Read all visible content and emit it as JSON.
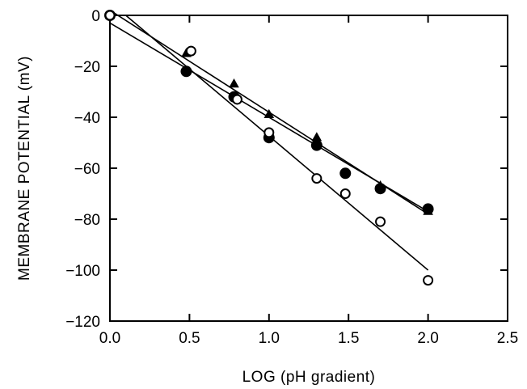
{
  "chart_data": {
    "type": "scatter",
    "title": "",
    "xlabel": "LOG (pH gradient)",
    "ylabel": "MEMBRANE POTENTIAL (mV)",
    "xlim": [
      0.0,
      2.5
    ],
    "ylim": [
      -120,
      0
    ],
    "x_ticks": [
      0.0,
      0.5,
      1.0,
      1.5,
      2.0,
      2.5
    ],
    "x_tick_labels": [
      "0.0",
      "0.5",
      "1.0",
      "1.5",
      "2.0",
      "2.5"
    ],
    "y_ticks": [
      0,
      -20,
      -40,
      -60,
      -80,
      -100,
      -120
    ],
    "y_tick_labels": [
      "0",
      "−20",
      "−40",
      "−60",
      "−80",
      "−100",
      "−120"
    ],
    "grid": false,
    "legend": "none",
    "series": [
      {
        "marker": "filled-circle",
        "x": [
          0.0,
          0.48,
          0.78,
          1.0,
          1.3,
          1.48,
          1.7,
          2.0
        ],
        "y": [
          0,
          -22,
          -32,
          -48,
          -51,
          -62,
          -68,
          -76
        ],
        "fit": {
          "x": [
            0.0,
            2.0
          ],
          "y": [
            -3,
            -77
          ]
        }
      },
      {
        "marker": "filled-triangle",
        "x": [
          0.0,
          0.48,
          0.78,
          1.0,
          1.3,
          1.7,
          2.0
        ],
        "y": [
          0,
          -15,
          -27,
          -39,
          -48,
          -67,
          -77
        ],
        "fit": {
          "x": [
            0.0,
            2.0
          ],
          "y": [
            2,
            -78
          ]
        }
      },
      {
        "marker": "open-circle",
        "x": [
          0.0,
          0.51,
          0.8,
          1.0,
          1.3,
          1.48,
          1.7,
          2.0
        ],
        "y": [
          0,
          -14,
          -33,
          -46,
          -64,
          -70,
          -81,
          -104
        ],
        "fit": {
          "x": [
            0.1,
            2.0
          ],
          "y": [
            0,
            -100
          ]
        }
      }
    ]
  }
}
